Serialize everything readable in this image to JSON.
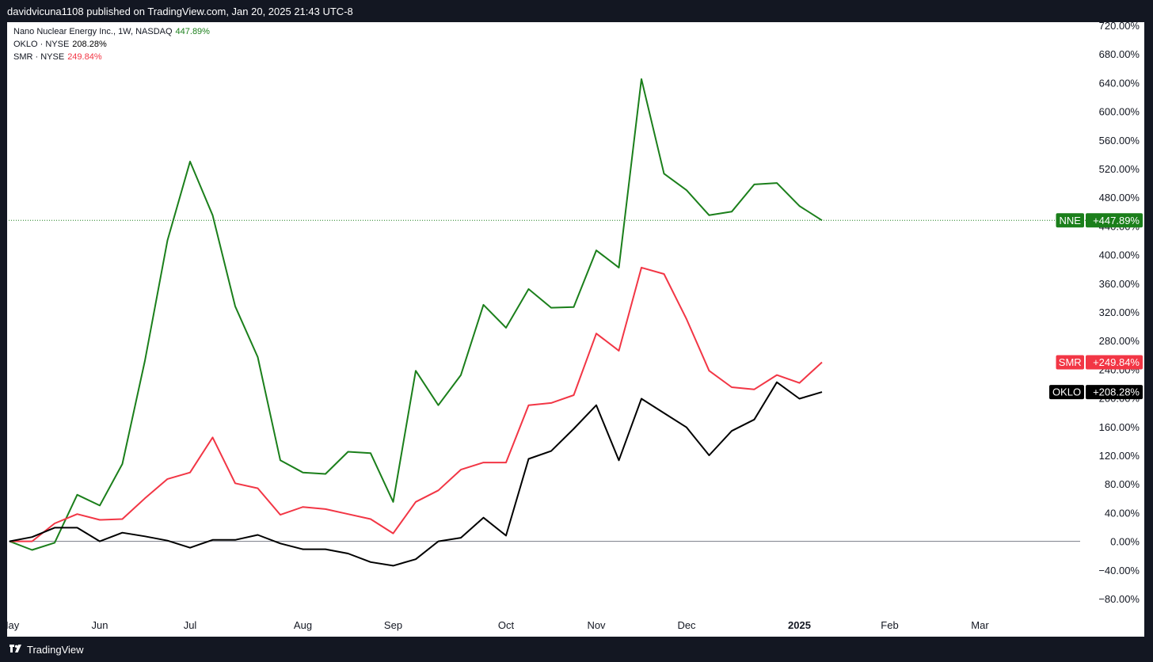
{
  "header": {
    "publisher_line": "davidvicuna1108 published on TradingView.com, Jan 20, 2025 21:43 UTC-8"
  },
  "footer": {
    "brand": "TradingView",
    "logo_icon": "tradingview-logo-icon"
  },
  "legend": [
    {
      "label": "Nano Nuclear Energy Inc., 1W, NASDAQ",
      "value": "447.89%",
      "color": "#1b7f1b"
    },
    {
      "label": "OKLO · NYSE",
      "value": "208.28%",
      "color": "#000000"
    },
    {
      "label": "SMR · NYSE",
      "value": "249.84%",
      "color": "#f23645"
    }
  ],
  "colors": {
    "nne": "#1b7f1b",
    "smr": "#f23645",
    "oklo": "#000000",
    "background": "#ffffff",
    "frame": "#131722",
    "zero_line": "#787b86"
  },
  "chart_data": {
    "type": "line",
    "y_unit": "%",
    "ylim": [
      -100,
      720
    ],
    "y_ticks": [
      "720.00%",
      "680.00%",
      "640.00%",
      "600.00%",
      "560.00%",
      "520.00%",
      "480.00%",
      "440.00%",
      "400.00%",
      "360.00%",
      "320.00%",
      "280.00%",
      "240.00%",
      "200.00%",
      "160.00%",
      "120.00%",
      "80.00%",
      "40.00%",
      "0.00%",
      "−40.00%",
      "−80.00%"
    ],
    "y_tick_values": [
      720,
      680,
      640,
      600,
      560,
      520,
      480,
      440,
      400,
      360,
      320,
      280,
      240,
      200,
      160,
      120,
      80,
      40,
      0,
      -40,
      -80
    ],
    "x_ticks": [
      {
        "label": "May",
        "week": 0,
        "bold": false
      },
      {
        "label": "Jun",
        "week": 4,
        "bold": false
      },
      {
        "label": "Jul",
        "week": 8,
        "bold": false
      },
      {
        "label": "Aug",
        "week": 13,
        "bold": false
      },
      {
        "label": "Sep",
        "week": 17,
        "bold": false
      },
      {
        "label": "Oct",
        "week": 22,
        "bold": false
      },
      {
        "label": "Nov",
        "week": 26,
        "bold": false
      },
      {
        "label": "Dec",
        "week": 30,
        "bold": false
      },
      {
        "label": "2025",
        "week": 35,
        "bold": true
      },
      {
        "label": "Feb",
        "week": 39,
        "bold": false
      },
      {
        "label": "Mar",
        "week": 43,
        "bold": false
      }
    ],
    "x_range_weeks": [
      0,
      47.5
    ],
    "x_unit": "weeks since May",
    "series": [
      {
        "name": "NNE",
        "key": "nne",
        "last_label": "+447.89%",
        "values": [
          0,
          -12,
          -2,
          65,
          50,
          108,
          252,
          420,
          530,
          455,
          328,
          257,
          113,
          96,
          94,
          125,
          123,
          55,
          238,
          190,
          232,
          330,
          298,
          352,
          326,
          327,
          406,
          382,
          645,
          513,
          490,
          455,
          460,
          498,
          500,
          468,
          447.89
        ]
      },
      {
        "name": "SMR",
        "key": "smr",
        "last_label": "+249.84%",
        "values": [
          0,
          0,
          25,
          38,
          30,
          31,
          60,
          87,
          96,
          145,
          81,
          74,
          37,
          48,
          45,
          38,
          31,
          11,
          55,
          71,
          100,
          110,
          110,
          190,
          193,
          204,
          290,
          266,
          382,
          373,
          310,
          238,
          215,
          212,
          232,
          221,
          249.84
        ]
      },
      {
        "name": "OKLO",
        "key": "oklo",
        "last_label": "+208.28%",
        "values": [
          0,
          6,
          19,
          19,
          0,
          12,
          7,
          1,
          -9,
          2,
          2,
          9,
          -3,
          -11,
          -11,
          -17,
          -29,
          -34,
          -25,
          0,
          5,
          33,
          8,
          115,
          126,
          157,
          190,
          113,
          199,
          179,
          159,
          120,
          154,
          170,
          222,
          199,
          208.28
        ]
      }
    ],
    "reference_line": {
      "series": "NNE",
      "value": 447.89,
      "style": "dotted"
    },
    "zero_line": true,
    "grid": false
  }
}
